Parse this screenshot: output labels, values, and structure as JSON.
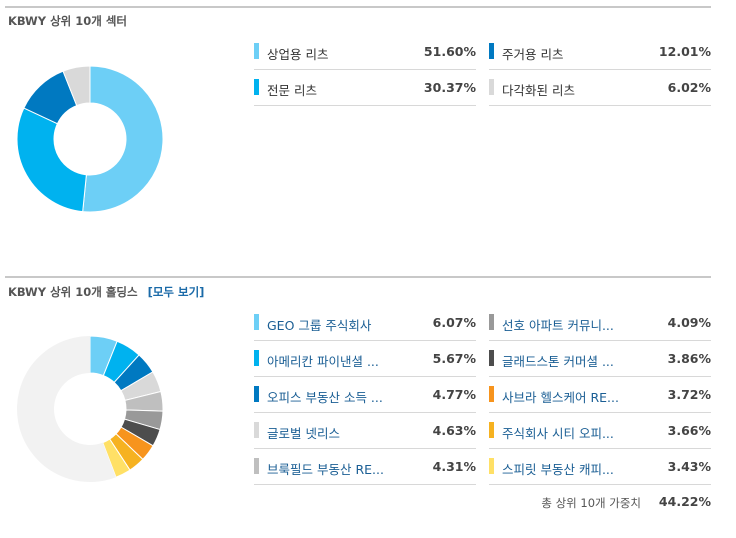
{
  "sectors": {
    "title": "KBWY 상위 10개 섹터",
    "colors": [
      "#6dcff6",
      "#00b2ef",
      "#0079c1",
      "#d9d9d9"
    ]
  },
  "holdings": {
    "title": "KBWY 상위 10개 홀딩스",
    "view_all": "[모두 보기]",
    "total_label": "총 상위 10개 가중치",
    "total_value": "44.22%",
    "remainder_color": "#f2f2f2",
    "colors": [
      "#6dcff6",
      "#00b2ef",
      "#0079c1",
      "#d9d9d9",
      "#bfbfbf",
      "#999999",
      "#4d4d4d",
      "#f7941d",
      "#f6b221",
      "#ffe066"
    ]
  },
  "chart_data": [
    {
      "type": "pie",
      "title": "KBWY 상위 10개 섹터",
      "categories": [
        "상업용 리츠",
        "전문 리츠",
        "주거용 리츠",
        "다각화된 리츠"
      ],
      "values": [
        51.6,
        30.37,
        12.01,
        6.02
      ],
      "labels": [
        "51.60%",
        "30.37%",
        "12.01%",
        "6.02%"
      ]
    },
    {
      "type": "pie",
      "title": "KBWY 상위 10개 홀딩스",
      "categories": [
        "GEO 그룹 주식회사",
        "아메리칸 파이낸셜 ...",
        "오피스 부동산 소득 ...",
        "글로벌 넷리스",
        "브룩필드 부동산 RE...",
        "선호 아파트 커뮤니...",
        "글래드스톤 커머셜 ...",
        "사브라 헬스케어 RE...",
        "주식회사 시티 오피...",
        "스피릿 부동산 캐피..."
      ],
      "values": [
        6.07,
        5.67,
        4.77,
        4.63,
        4.31,
        4.09,
        3.86,
        3.72,
        3.66,
        3.43
      ],
      "labels": [
        "6.07%",
        "5.67%",
        "4.77%",
        "4.63%",
        "4.31%",
        "4.09%",
        "3.86%",
        "3.72%",
        "3.66%",
        "3.43%"
      ]
    }
  ]
}
